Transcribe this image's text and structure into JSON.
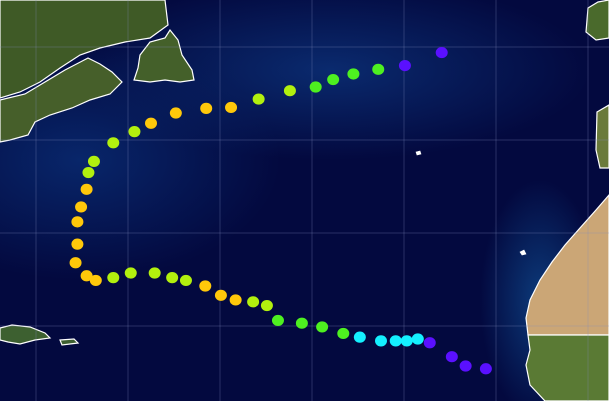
{
  "map": {
    "type": "storm-track",
    "graticule_spacing_deg": 10,
    "grid_lon": [
      -80,
      -70,
      -60,
      -50,
      -40,
      -30,
      -20,
      -10
    ],
    "grid_lat": [
      50,
      40,
      30,
      20
    ],
    "category_colors": {
      "TD": "#5a10ff",
      "TS": "#14f0ff",
      "C1": "#4ef020",
      "C2": "#b2f00e",
      "C3": "#ffc80a"
    },
    "ocean_color": "#03093f",
    "coastline_color": "#ffffff"
  },
  "track": [
    {
      "lon": -21.1,
      "lat": 15.4,
      "cat": "TD"
    },
    {
      "lon": -23.3,
      "lat": 15.7,
      "cat": "TD"
    },
    {
      "lon": -24.8,
      "lat": 16.7,
      "cat": "TD"
    },
    {
      "lon": -27.2,
      "lat": 18.2,
      "cat": "TD"
    },
    {
      "lon": -28.5,
      "lat": 18.6,
      "cat": "TS"
    },
    {
      "lon": -29.7,
      "lat": 18.4,
      "cat": "TS"
    },
    {
      "lon": -30.9,
      "lat": 18.4,
      "cat": "TS"
    },
    {
      "lon": -32.5,
      "lat": 18.4,
      "cat": "TS"
    },
    {
      "lon": -34.8,
      "lat": 18.8,
      "cat": "TS"
    },
    {
      "lon": -36.6,
      "lat": 19.2,
      "cat": "C1"
    },
    {
      "lon": -38.9,
      "lat": 19.9,
      "cat": "C1"
    },
    {
      "lon": -41.1,
      "lat": 20.3,
      "cat": "C1"
    },
    {
      "lon": -43.7,
      "lat": 20.6,
      "cat": "C1"
    },
    {
      "lon": -44.9,
      "lat": 22.2,
      "cat": "C2"
    },
    {
      "lon": -46.4,
      "lat": 22.6,
      "cat": "C2"
    },
    {
      "lon": -48.3,
      "lat": 22.8,
      "cat": "C3"
    },
    {
      "lon": -49.9,
      "lat": 23.3,
      "cat": "C3"
    },
    {
      "lon": -51.6,
      "lat": 24.3,
      "cat": "C3"
    },
    {
      "lon": -53.7,
      "lat": 24.9,
      "cat": "C2"
    },
    {
      "lon": -55.2,
      "lat": 25.2,
      "cat": "C2"
    },
    {
      "lon": -57.1,
      "lat": 25.7,
      "cat": "C2"
    },
    {
      "lon": -59.7,
      "lat": 25.7,
      "cat": "C2"
    },
    {
      "lon": -61.6,
      "lat": 25.2,
      "cat": "C2"
    },
    {
      "lon": -63.5,
      "lat": 24.9,
      "cat": "C3"
    },
    {
      "lon": -64.5,
      "lat": 25.4,
      "cat": "C3"
    },
    {
      "lon": -65.7,
      "lat": 26.8,
      "cat": "C3"
    },
    {
      "lon": -65.5,
      "lat": 28.8,
      "cat": "C3"
    },
    {
      "lon": -65.5,
      "lat": 31.2,
      "cat": "C3"
    },
    {
      "lon": -65.1,
      "lat": 32.8,
      "cat": "C3"
    },
    {
      "lon": -64.5,
      "lat": 34.7,
      "cat": "C3"
    },
    {
      "lon": -64.3,
      "lat": 36.5,
      "cat": "C2"
    },
    {
      "lon": -63.7,
      "lat": 37.7,
      "cat": "C2"
    },
    {
      "lon": -61.6,
      "lat": 39.7,
      "cat": "C2"
    },
    {
      "lon": -59.3,
      "lat": 40.9,
      "cat": "C2"
    },
    {
      "lon": -57.5,
      "lat": 41.8,
      "cat": "C3"
    },
    {
      "lon": -54.8,
      "lat": 42.9,
      "cat": "C3"
    },
    {
      "lon": -51.5,
      "lat": 43.4,
      "cat": "C3"
    },
    {
      "lon": -48.8,
      "lat": 43.5,
      "cat": "C3"
    },
    {
      "lon": -45.8,
      "lat": 44.4,
      "cat": "C2"
    },
    {
      "lon": -42.4,
      "lat": 45.3,
      "cat": "C2"
    },
    {
      "lon": -39.6,
      "lat": 45.7,
      "cat": "C1"
    },
    {
      "lon": -37.7,
      "lat": 46.5,
      "cat": "C1"
    },
    {
      "lon": -35.5,
      "lat": 47.1,
      "cat": "C1"
    },
    {
      "lon": -32.8,
      "lat": 47.6,
      "cat": "C1"
    },
    {
      "lon": -29.9,
      "lat": 48.0,
      "cat": "TD"
    },
    {
      "lon": -25.9,
      "lat": 49.4,
      "cat": "TD"
    }
  ]
}
